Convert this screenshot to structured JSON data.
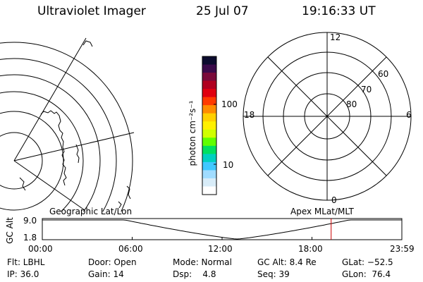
{
  "header": {
    "title": "Ultraviolet Imager",
    "date": "25 Jul 07",
    "time": "19:16:33 UT"
  },
  "colorbar": {
    "unit_label": "photon cm⁻²s⁻¹",
    "ticks": [
      "100",
      "10"
    ],
    "colors": [
      "#0b0b2e",
      "#3a0a4a",
      "#7a0a3a",
      "#b00020",
      "#e00010",
      "#ff3a00",
      "#ff8c00",
      "#ffd000",
      "#fff000",
      "#d0ff00",
      "#60ff00",
      "#00e060",
      "#00d0c0",
      "#40c8ff",
      "#a0dcff",
      "#d8ecf8",
      "#ffffff"
    ]
  },
  "polar": {
    "labels": {
      "top": "12",
      "bottom": "0",
      "left": "18",
      "right": "6",
      "r60": "60",
      "r70": "70",
      "r80": "80"
    }
  },
  "timeline": {
    "left_caption": "Geographic Lat/Lon",
    "right_caption": "Apex MLat/MLT",
    "y_axis_label": "GC Alt",
    "y_ticks": [
      "9.0",
      "1.8"
    ],
    "x_ticks": [
      "00:00",
      "06:00",
      "12:00",
      "18:00",
      "23:59"
    ],
    "marker_hour": 19.28,
    "marker_color": "#cc0000"
  },
  "info": {
    "filter": "Flt: LBHL",
    "door": "Door: Open",
    "mode": "Mode: Normal",
    "gc_alt": "GC Alt: 8.4 Re",
    "glat": "GLat: −52.5",
    "ip": "IP: 36.0",
    "gain": "Gain: 14",
    "dsp": "Dsp:    4.8",
    "seq": "Seq: 39",
    "glon": "GLon:  76.4"
  }
}
